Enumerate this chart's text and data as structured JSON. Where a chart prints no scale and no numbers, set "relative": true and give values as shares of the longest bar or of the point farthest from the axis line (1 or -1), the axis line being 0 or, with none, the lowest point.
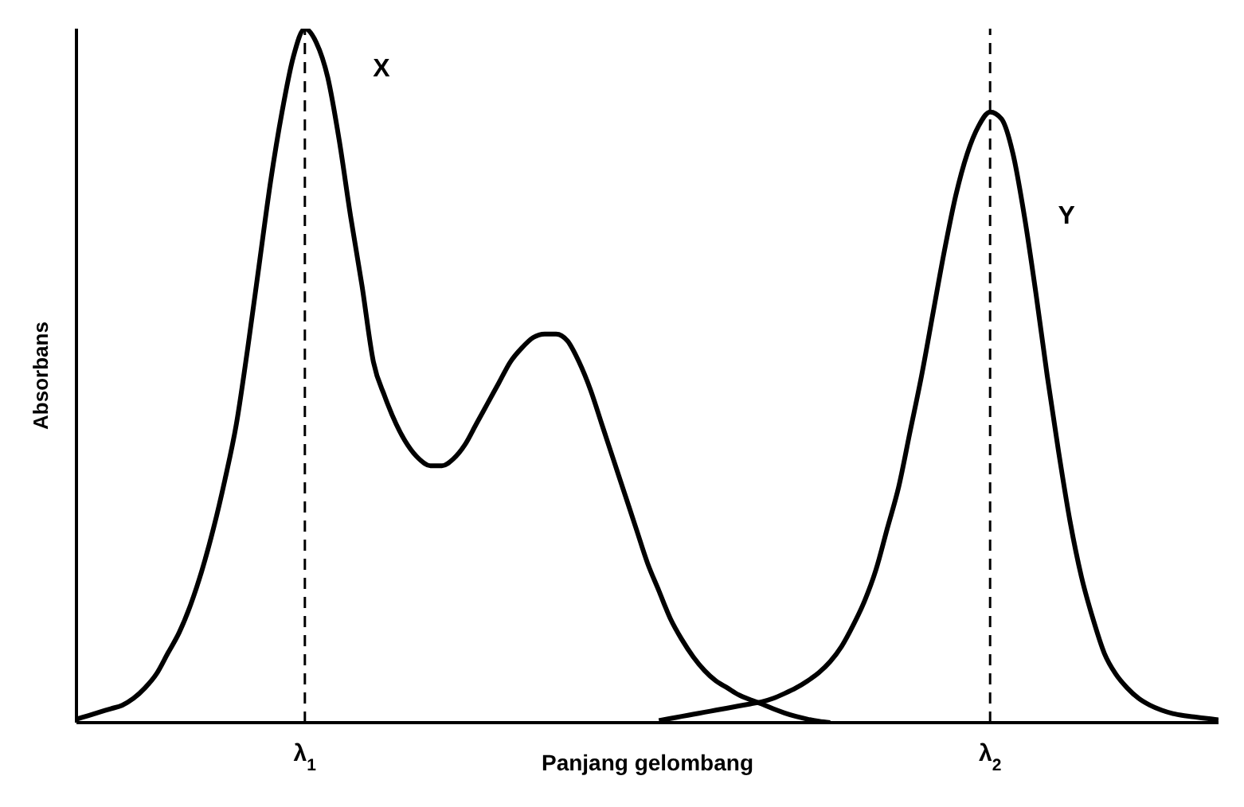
{
  "chart_data": {
    "type": "line",
    "relative": true,
    "ylabel": "Absorbans",
    "xlabel": "Panjang gelombang",
    "categories": [
      null,
      null,
      null,
      null,
      null,
      null,
      null,
      null,
      null,
      null,
      null,
      null,
      null,
      null,
      null,
      null,
      null,
      null,
      null,
      null,
      "λ$_{1}$",
      null,
      null,
      null,
      null,
      null,
      null,
      null,
      null,
      null,
      null,
      null,
      null,
      null,
      null,
      null,
      null,
      null,
      null,
      null,
      null,
      null,
      null,
      null,
      null,
      null,
      null,
      null,
      null,
      null,
      null,
      null,
      null,
      null,
      null,
      null,
      null,
      null,
      null,
      null,
      null,
      null,
      null,
      null,
      null,
      null,
      null,
      null,
      null,
      null,
      null,
      null,
      null,
      null,
      null,
      null,
      null,
      null,
      null,
      null,
      "λ$_{2}$",
      null,
      null,
      null,
      null,
      null,
      null,
      null,
      null,
      null,
      null,
      null,
      null,
      null,
      null,
      null,
      null,
      null,
      null,
      null,
      null
    ],
    "series": [
      {
        "name": "X",
        "color": "#000000",
        "values": [
          0.005,
          0.01,
          0.015,
          0.02,
          0.025,
          0.035,
          0.05,
          0.07,
          0.1,
          0.13,
          0.17,
          0.22,
          0.28,
          0.35,
          0.43,
          0.54,
          0.66,
          0.78,
          0.88,
          0.96,
          1.0,
          0.98,
          0.93,
          0.84,
          0.73,
          0.63,
          0.52,
          0.47,
          0.43,
          0.4,
          0.38,
          0.37,
          0.37,
          0.38,
          0.4,
          0.43,
          0.46,
          0.49,
          0.52,
          0.54,
          0.555,
          0.56,
          0.56,
          0.55,
          0.52,
          0.48,
          0.43,
          0.38,
          0.33,
          0.28,
          0.23,
          0.19,
          0.15,
          0.12,
          0.095,
          0.075,
          0.06,
          0.05,
          0.04,
          0.033,
          0.027,
          0.02,
          0.014,
          0.009,
          0.005,
          0.002,
          0,
          null,
          null,
          null,
          null,
          null,
          null,
          null,
          null,
          null,
          null,
          null,
          null,
          null,
          null,
          null,
          null,
          null,
          null,
          null,
          null,
          null,
          null,
          null,
          null,
          null,
          null,
          null,
          null,
          null,
          null,
          null,
          null,
          null,
          null
        ]
      },
      {
        "name": "Y",
        "color": "#000000",
        "values": [
          null,
          null,
          null,
          null,
          null,
          null,
          null,
          null,
          null,
          null,
          null,
          null,
          null,
          null,
          null,
          null,
          null,
          null,
          null,
          null,
          null,
          null,
          null,
          null,
          null,
          null,
          null,
          null,
          null,
          null,
          null,
          null,
          null,
          null,
          null,
          null,
          null,
          null,
          null,
          null,
          null,
          null,
          null,
          null,
          null,
          null,
          null,
          null,
          null,
          null,
          null,
          0.003,
          0.006,
          0.009,
          0.012,
          0.015,
          0.018,
          0.021,
          0.024,
          0.027,
          0.03,
          0.035,
          0.042,
          0.05,
          0.06,
          0.072,
          0.088,
          0.11,
          0.14,
          0.175,
          0.22,
          0.28,
          0.34,
          0.42,
          0.5,
          0.59,
          0.68,
          0.76,
          0.82,
          0.86,
          0.88,
          0.87,
          0.82,
          0.73,
          0.62,
          0.5,
          0.39,
          0.29,
          0.21,
          0.15,
          0.1,
          0.07,
          0.05,
          0.035,
          0.025,
          0.018,
          0.013,
          0.01,
          0.008,
          0.006,
          0.004
        ]
      }
    ],
    "ref_lines": [
      {
        "axis": "x",
        "value": "λ$_{1}$",
        "line_style": "dashed",
        "color": "#000000"
      },
      {
        "axis": "x",
        "value": "λ$_{2}$",
        "line_style": "dashed",
        "color": "#000000"
      }
    ]
  }
}
